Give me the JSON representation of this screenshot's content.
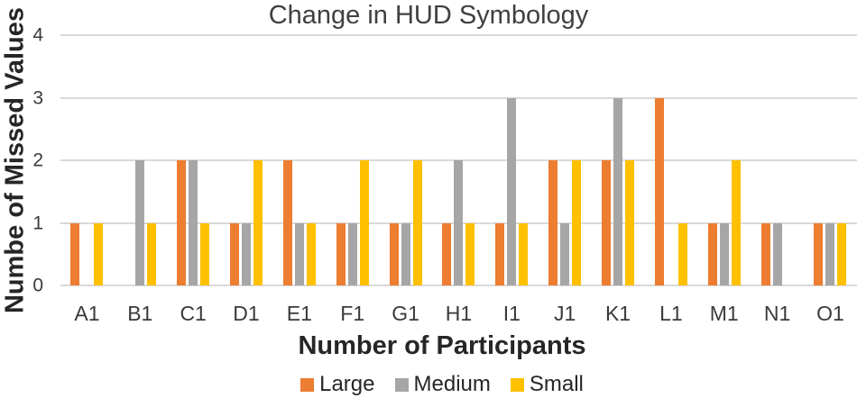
{
  "chart_data": {
    "type": "bar",
    "title": "Change in HUD Symbology",
    "xlabel": "Number of Participants",
    "ylabel": "Numbe of Missed Values",
    "categories": [
      "A1",
      "B1",
      "C1",
      "D1",
      "E1",
      "F1",
      "G1",
      "H1",
      "I1",
      "J1",
      "K1",
      "L1",
      "M1",
      "N1",
      "O1"
    ],
    "series": [
      {
        "name": "Large",
        "color": "#ED7D31",
        "values": [
          1,
          0,
          2,
          1,
          2,
          1,
          1,
          1,
          1,
          2,
          2,
          3,
          1,
          1,
          1
        ]
      },
      {
        "name": "Medium",
        "color": "#A6A6A6",
        "values": [
          0,
          2,
          2,
          1,
          1,
          1,
          1,
          2,
          3,
          1,
          3,
          0,
          1,
          1,
          1
        ]
      },
      {
        "name": "Small",
        "color": "#FFC000",
        "values": [
          1,
          1,
          1,
          2,
          1,
          2,
          2,
          1,
          1,
          2,
          2,
          1,
          2,
          0,
          1
        ]
      }
    ],
    "ylim": [
      0,
      4
    ],
    "y_ticks": [
      0,
      1,
      2,
      3,
      4
    ],
    "grid": "horizontal",
    "legend_position": "bottom",
    "gridline_color": "#D9D9D9",
    "text_color": "#404040"
  }
}
